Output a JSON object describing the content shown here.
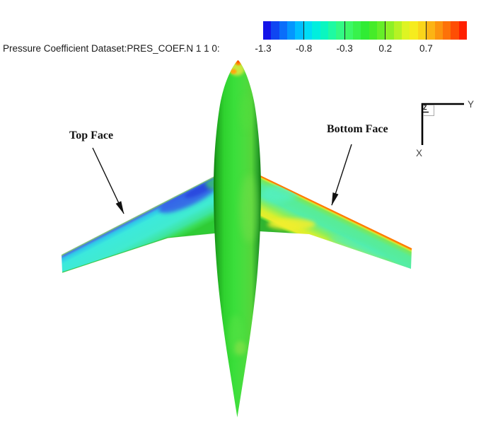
{
  "figure": {
    "title": "Pressure Coefficient Dataset:PRES_COEF.N 1 1 0:"
  },
  "colorbar": {
    "tick_labels": [
      "-1.3",
      "-0.8",
      "-0.3",
      "0.2",
      "0.7"
    ],
    "segment_colors": [
      "#1414E8",
      "#0F46F2",
      "#0A6EFA",
      "#0496FE",
      "#00BEFF",
      "#00DCF6",
      "#00EEDE",
      "#0AF6C0",
      "#1EFAA2",
      "#32FA84",
      "#3CF868",
      "#38F24C",
      "#30EC34",
      "#46EC28",
      "#66EE28",
      "#8EF026",
      "#B6F224",
      "#DEF422",
      "#F6EC1E",
      "#FAD51A",
      "#FCB414",
      "#FC940E",
      "#FD7208",
      "#FE4E04",
      "#FF2000"
    ]
  },
  "annotations": {
    "top_face_label": "Top Face",
    "bottom_face_label": "Bottom Face"
  },
  "axis_triad": {
    "y_label": "Y",
    "x_label": "X",
    "z_label": "Z"
  },
  "surface_colors": {
    "fuselage_green": "#34D534",
    "left_wing_cyan": "#3FE9DA",
    "left_wing_suction_blue": "#3558E8",
    "right_wing_mint_green": "#58EC96",
    "right_wing_pressure_yellow": "#E8EE2C",
    "right_wing_leading_edge_orange": "#FF7A00",
    "nose_stagnation_orange": "#FF4000"
  },
  "chart_data": {
    "type": "heatmap",
    "title": "Pressure Coefficient Dataset:PRES_COEF.N 1 1 0:",
    "subject": "Aircraft surface pressure coefficient contour plot, planform view; left wing annotated as Top Face, right wing annotated as Bottom Face",
    "legend_position": "top",
    "colorbar_ticks": [
      -1.3,
      -0.8,
      -0.3,
      0.2,
      0.7
    ],
    "colorbar_range": [
      -1.3,
      1.2
    ],
    "colorbar_segment_step": 0.1,
    "regions": [
      {
        "region": "fuselage body",
        "cp_approx": -0.2
      },
      {
        "region": "nose stagnation spot",
        "cp_approx": 1.0
      },
      {
        "region": "left wing (top face) suction patch near root leading edge",
        "cp_approx": -1.1
      },
      {
        "region": "left wing (top face) main surface",
        "cp_approx": -0.6
      },
      {
        "region": "left wing trailing edge",
        "cp_approx": -0.25
      },
      {
        "region": "right wing (bottom face) main surface",
        "cp_approx": -0.4
      },
      {
        "region": "right wing (bottom face) pressure band",
        "cp_approx": 0.4
      },
      {
        "region": "right wing leading edge stripe",
        "cp_approx": 0.9
      }
    ]
  }
}
